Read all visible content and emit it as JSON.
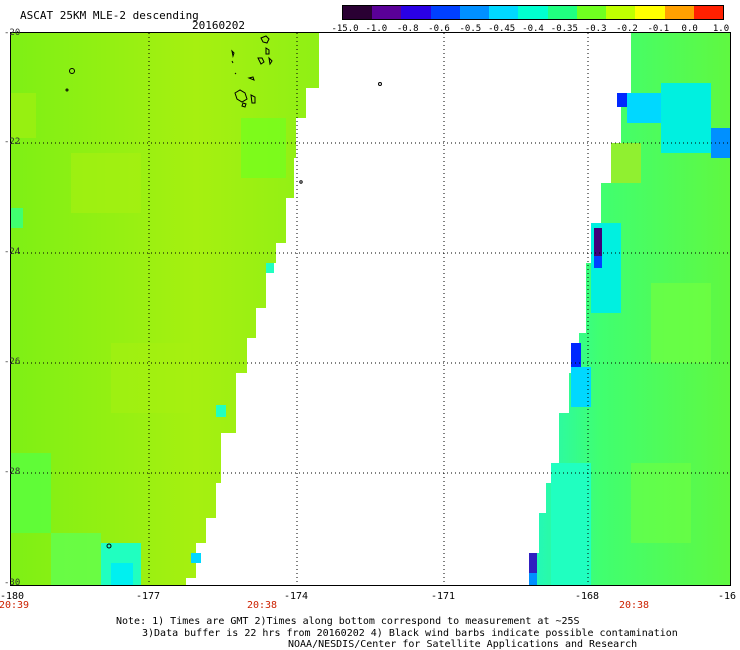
{
  "header": {
    "title": "ASCAT 25KM MLE-2 descending",
    "date": "20160202"
  },
  "colorbar": {
    "labels": [
      "-15.0",
      "-1.0",
      "-0.8",
      "-0.6",
      "-0.5",
      "-0.45",
      "-0.4",
      "-0.35",
      "-0.3",
      "-0.2",
      "-0.1",
      "0.0",
      "1.0"
    ],
    "colors": [
      "#2a0033",
      "#5a0098",
      "#2a00e6",
      "#0040ff",
      "#0090ff",
      "#00d8ff",
      "#00ffd0",
      "#20ff80",
      "#70ff20",
      "#c0ff00",
      "#ffff00",
      "#ffa000",
      "#ff2000"
    ]
  },
  "map": {
    "lat_labels": [
      "-20",
      "-22",
      "-24",
      "-26",
      "-28",
      "-30"
    ],
    "lon_labels": [
      "-180",
      "-177",
      "-174",
      "-171",
      "-168",
      "-16"
    ],
    "time_labels": [
      "20:39",
      "20:38",
      "20:38"
    ]
  },
  "notes": {
    "line1": "Note: 1) Times are GMT 2)Times along bottom correspond to measurement at ~25S",
    "line2": "3)Data buffer is 22 hrs from 20160202 4) Black wind barbs indicate possible contamination",
    "line3": "NOAA/NESDIS/Center for Satellite Applications and Research"
  }
}
